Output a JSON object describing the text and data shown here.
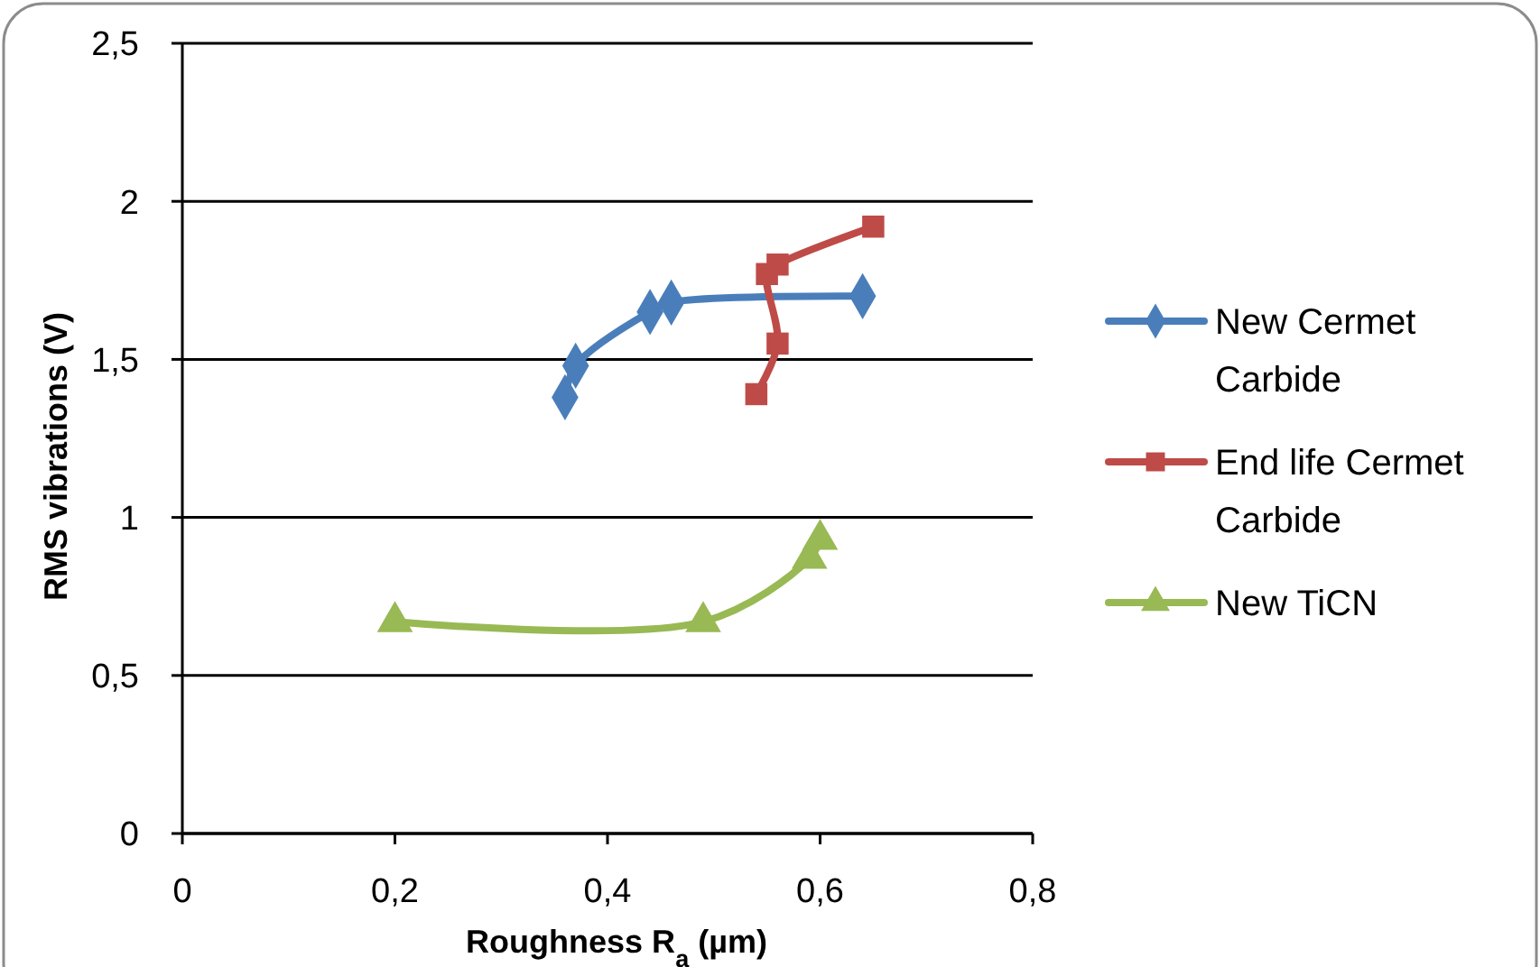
{
  "chart_data": {
    "type": "line",
    "xlabel": "Roughness R$_{a}$ (µm)",
    "ylabel": "RMS vibrations (V)",
    "xlim": [
      0,
      0.8
    ],
    "xticks": [
      0,
      {
        "value": 0.2,
        "label": "0,2"
      },
      {
        "value": 0.4,
        "label": "0,4"
      },
      {
        "value": 0.6,
        "label": "0,6"
      },
      {
        "value": 0.8,
        "label": "0,8"
      }
    ],
    "ylim": [
      0,
      2.5
    ],
    "yticks": [
      0,
      {
        "value": 0.5,
        "label": "0,5"
      },
      1,
      {
        "value": 1.5,
        "label": "1,5"
      },
      2,
      {
        "value": 2.5,
        "label": "2,5"
      }
    ],
    "grid": "y",
    "legend": "right",
    "series": [
      {
        "name": "New Cermet Carbide",
        "color": "#4a7ebb",
        "marker": "diamond",
        "x": [
          0.36,
          0.37,
          0.44,
          0.46,
          0.64
        ],
        "values": [
          1.38,
          1.48,
          1.65,
          1.68,
          1.7
        ]
      },
      {
        "name": "End life Cermet Carbide",
        "color": "#be4b48",
        "marker": "square",
        "x": [
          0.54,
          0.56,
          0.55,
          0.56,
          0.65
        ],
        "values": [
          1.39,
          1.55,
          1.77,
          1.8,
          1.92
        ]
      },
      {
        "name": "New TiCN",
        "color": "#98b954",
        "marker": "triangle",
        "x": [
          0.2,
          0.49,
          0.59,
          0.6
        ],
        "values": [
          0.67,
          0.67,
          0.87,
          0.93
        ]
      }
    ]
  }
}
